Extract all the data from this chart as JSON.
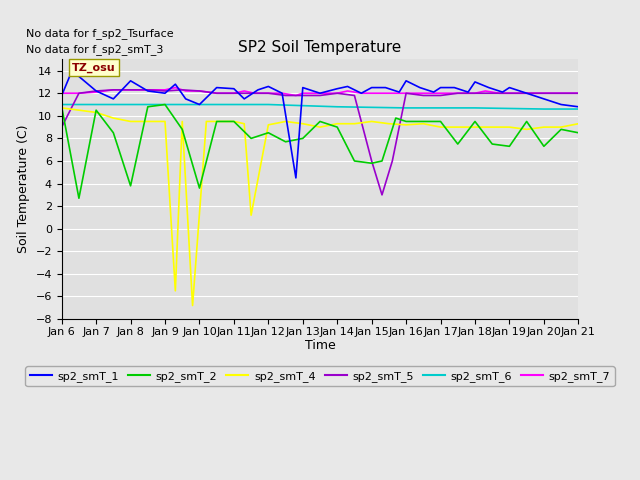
{
  "title": "SP2 Soil Temperature",
  "xlabel": "Time",
  "ylabel": "Soil Temperature (C)",
  "no_data_text": [
    "No data for f_sp2_Tsurface",
    "No data for f_sp2_smT_3"
  ],
  "annotation_text": "TZ_osu",
  "ylim": [
    -8,
    15
  ],
  "yticks": [
    -8,
    -6,
    -4,
    -2,
    0,
    2,
    4,
    6,
    8,
    10,
    12,
    14
  ],
  "xtick_labels": [
    "Jan 6",
    "Jan 7",
    "Jan 8",
    "Jan 9",
    "Jan 10",
    "Jan 11",
    "Jan 12",
    "Jan 13",
    "Jan 14",
    "Jan 15",
    "Jan 16",
    "Jan 17",
    "Jan 18",
    "Jan 19",
    "Jan 20",
    "Jan 21"
  ],
  "legend_labels": [
    "sp2_smT_1",
    "sp2_smT_2",
    "sp2_smT_4",
    "sp2_smT_5",
    "sp2_smT_6",
    "sp2_smT_7"
  ],
  "legend_colors": [
    "#0000ff",
    "#00cc00",
    "#ffff00",
    "#9900cc",
    "#00cccc",
    "#ff00ff"
  ],
  "fig_facecolor": "#e8e8e8",
  "plot_facecolor": "#e0e0e0",
  "smT1_x": [
    0,
    0.3,
    1,
    1.5,
    2,
    2.5,
    3,
    3.3,
    3.6,
    4,
    4.5,
    5,
    5.3,
    5.7,
    6,
    6.4,
    6.8,
    7,
    7.5,
    8,
    8.3,
    8.7,
    9,
    9.4,
    9.8,
    10,
    10.4,
    10.8,
    11,
    11.4,
    11.8,
    12,
    12.4,
    12.8,
    13,
    13.5,
    14,
    14.5,
    15
  ],
  "smT1_y": [
    11.8,
    14.0,
    12.2,
    11.5,
    13.1,
    12.2,
    12.0,
    12.8,
    11.5,
    11.0,
    12.5,
    12.4,
    11.5,
    12.3,
    12.6,
    12.0,
    4.5,
    12.5,
    12.0,
    12.4,
    12.6,
    12.0,
    12.5,
    12.5,
    12.1,
    13.1,
    12.5,
    12.1,
    12.5,
    12.5,
    12.1,
    13.0,
    12.5,
    12.1,
    12.5,
    12.0,
    11.5,
    11.0,
    10.8
  ],
  "smT2_x": [
    0,
    0.5,
    1,
    1.5,
    2,
    2.5,
    3,
    3.5,
    4,
    4.5,
    5,
    5.5,
    6,
    6.5,
    7,
    7.5,
    8,
    8.5,
    9,
    9.3,
    9.7,
    10,
    10.5,
    11,
    11.5,
    12,
    12.5,
    13,
    13.5,
    14,
    14.5,
    15
  ],
  "smT2_y": [
    10.8,
    2.7,
    10.5,
    8.5,
    3.8,
    10.8,
    11.0,
    8.8,
    3.6,
    9.5,
    9.5,
    8.0,
    8.5,
    7.7,
    8.0,
    9.5,
    9.0,
    6.0,
    5.8,
    6.0,
    9.8,
    9.5,
    9.5,
    9.5,
    7.5,
    9.5,
    7.5,
    7.3,
    9.5,
    7.3,
    8.8,
    8.5
  ],
  "smT4_x": [
    0,
    0.5,
    1,
    1.5,
    2,
    2.5,
    3,
    3.3,
    3.5,
    3.8,
    4.2,
    4.5,
    5,
    5.3,
    5.5,
    6,
    6.5,
    7,
    7.5,
    8,
    8.5,
    9,
    9.5,
    10,
    10.5,
    11,
    11.5,
    12,
    12.5,
    13,
    13.5,
    14,
    14.5,
    15
  ],
  "smT4_y": [
    10.7,
    10.5,
    10.3,
    9.8,
    9.5,
    9.5,
    9.5,
    -5.5,
    9.5,
    -6.8,
    9.5,
    9.5,
    9.5,
    9.3,
    1.2,
    9.2,
    9.5,
    9.3,
    9.0,
    9.3,
    9.3,
    9.5,
    9.3,
    9.2,
    9.3,
    9.0,
    9.0,
    9.0,
    9.0,
    9.0,
    8.8,
    9.0,
    9.0,
    9.3
  ],
  "smT5_x": [
    0,
    0.5,
    1,
    1.5,
    2,
    2.5,
    3,
    3.5,
    4,
    4.5,
    5,
    5.5,
    6,
    6.5,
    7,
    7.5,
    8,
    8.5,
    9,
    9.3,
    9.6,
    10,
    10.5,
    11,
    11.5,
    12,
    12.5,
    13,
    13.5,
    13.8,
    14,
    14.5,
    15
  ],
  "smT5_y": [
    9.0,
    12.0,
    12.2,
    12.3,
    12.3,
    12.3,
    12.2,
    12.3,
    12.2,
    12.0,
    12.0,
    12.0,
    12.0,
    11.8,
    11.8,
    11.8,
    12.0,
    11.8,
    6.0,
    3.0,
    6.0,
    12.0,
    11.8,
    11.8,
    12.0,
    12.0,
    12.0,
    12.0,
    12.0,
    12.0,
    12.0,
    12.0,
    12.0
  ],
  "smT6_x": [
    0,
    2,
    4,
    6,
    8,
    10,
    12,
    14,
    15
  ],
  "smT6_y": [
    11.0,
    11.0,
    11.0,
    11.0,
    10.8,
    10.7,
    10.7,
    10.6,
    10.6
  ],
  "smT7_x": [
    0,
    0.5,
    1,
    1.5,
    2,
    2.5,
    3,
    3.3,
    3.6,
    4,
    4.5,
    5,
    5.3,
    5.6,
    6,
    6.4,
    6.8,
    7,
    7.5,
    8,
    8.3,
    8.7,
    9,
    9.4,
    9.8,
    10,
    10.4,
    10.8,
    11,
    11.5,
    12,
    12.3,
    12.7,
    13,
    13.5,
    14,
    14.5,
    15
  ],
  "smT7_y": [
    12.0,
    12.0,
    12.1,
    12.3,
    12.3,
    12.3,
    12.3,
    12.5,
    12.2,
    12.2,
    12.0,
    12.0,
    12.2,
    12.0,
    12.0,
    12.0,
    11.8,
    12.0,
    12.0,
    12.0,
    12.2,
    12.0,
    12.0,
    12.0,
    12.0,
    12.0,
    12.0,
    12.0,
    12.0,
    12.0,
    12.0,
    12.2,
    12.0,
    12.0,
    12.0,
    12.0,
    12.0,
    12.0
  ]
}
